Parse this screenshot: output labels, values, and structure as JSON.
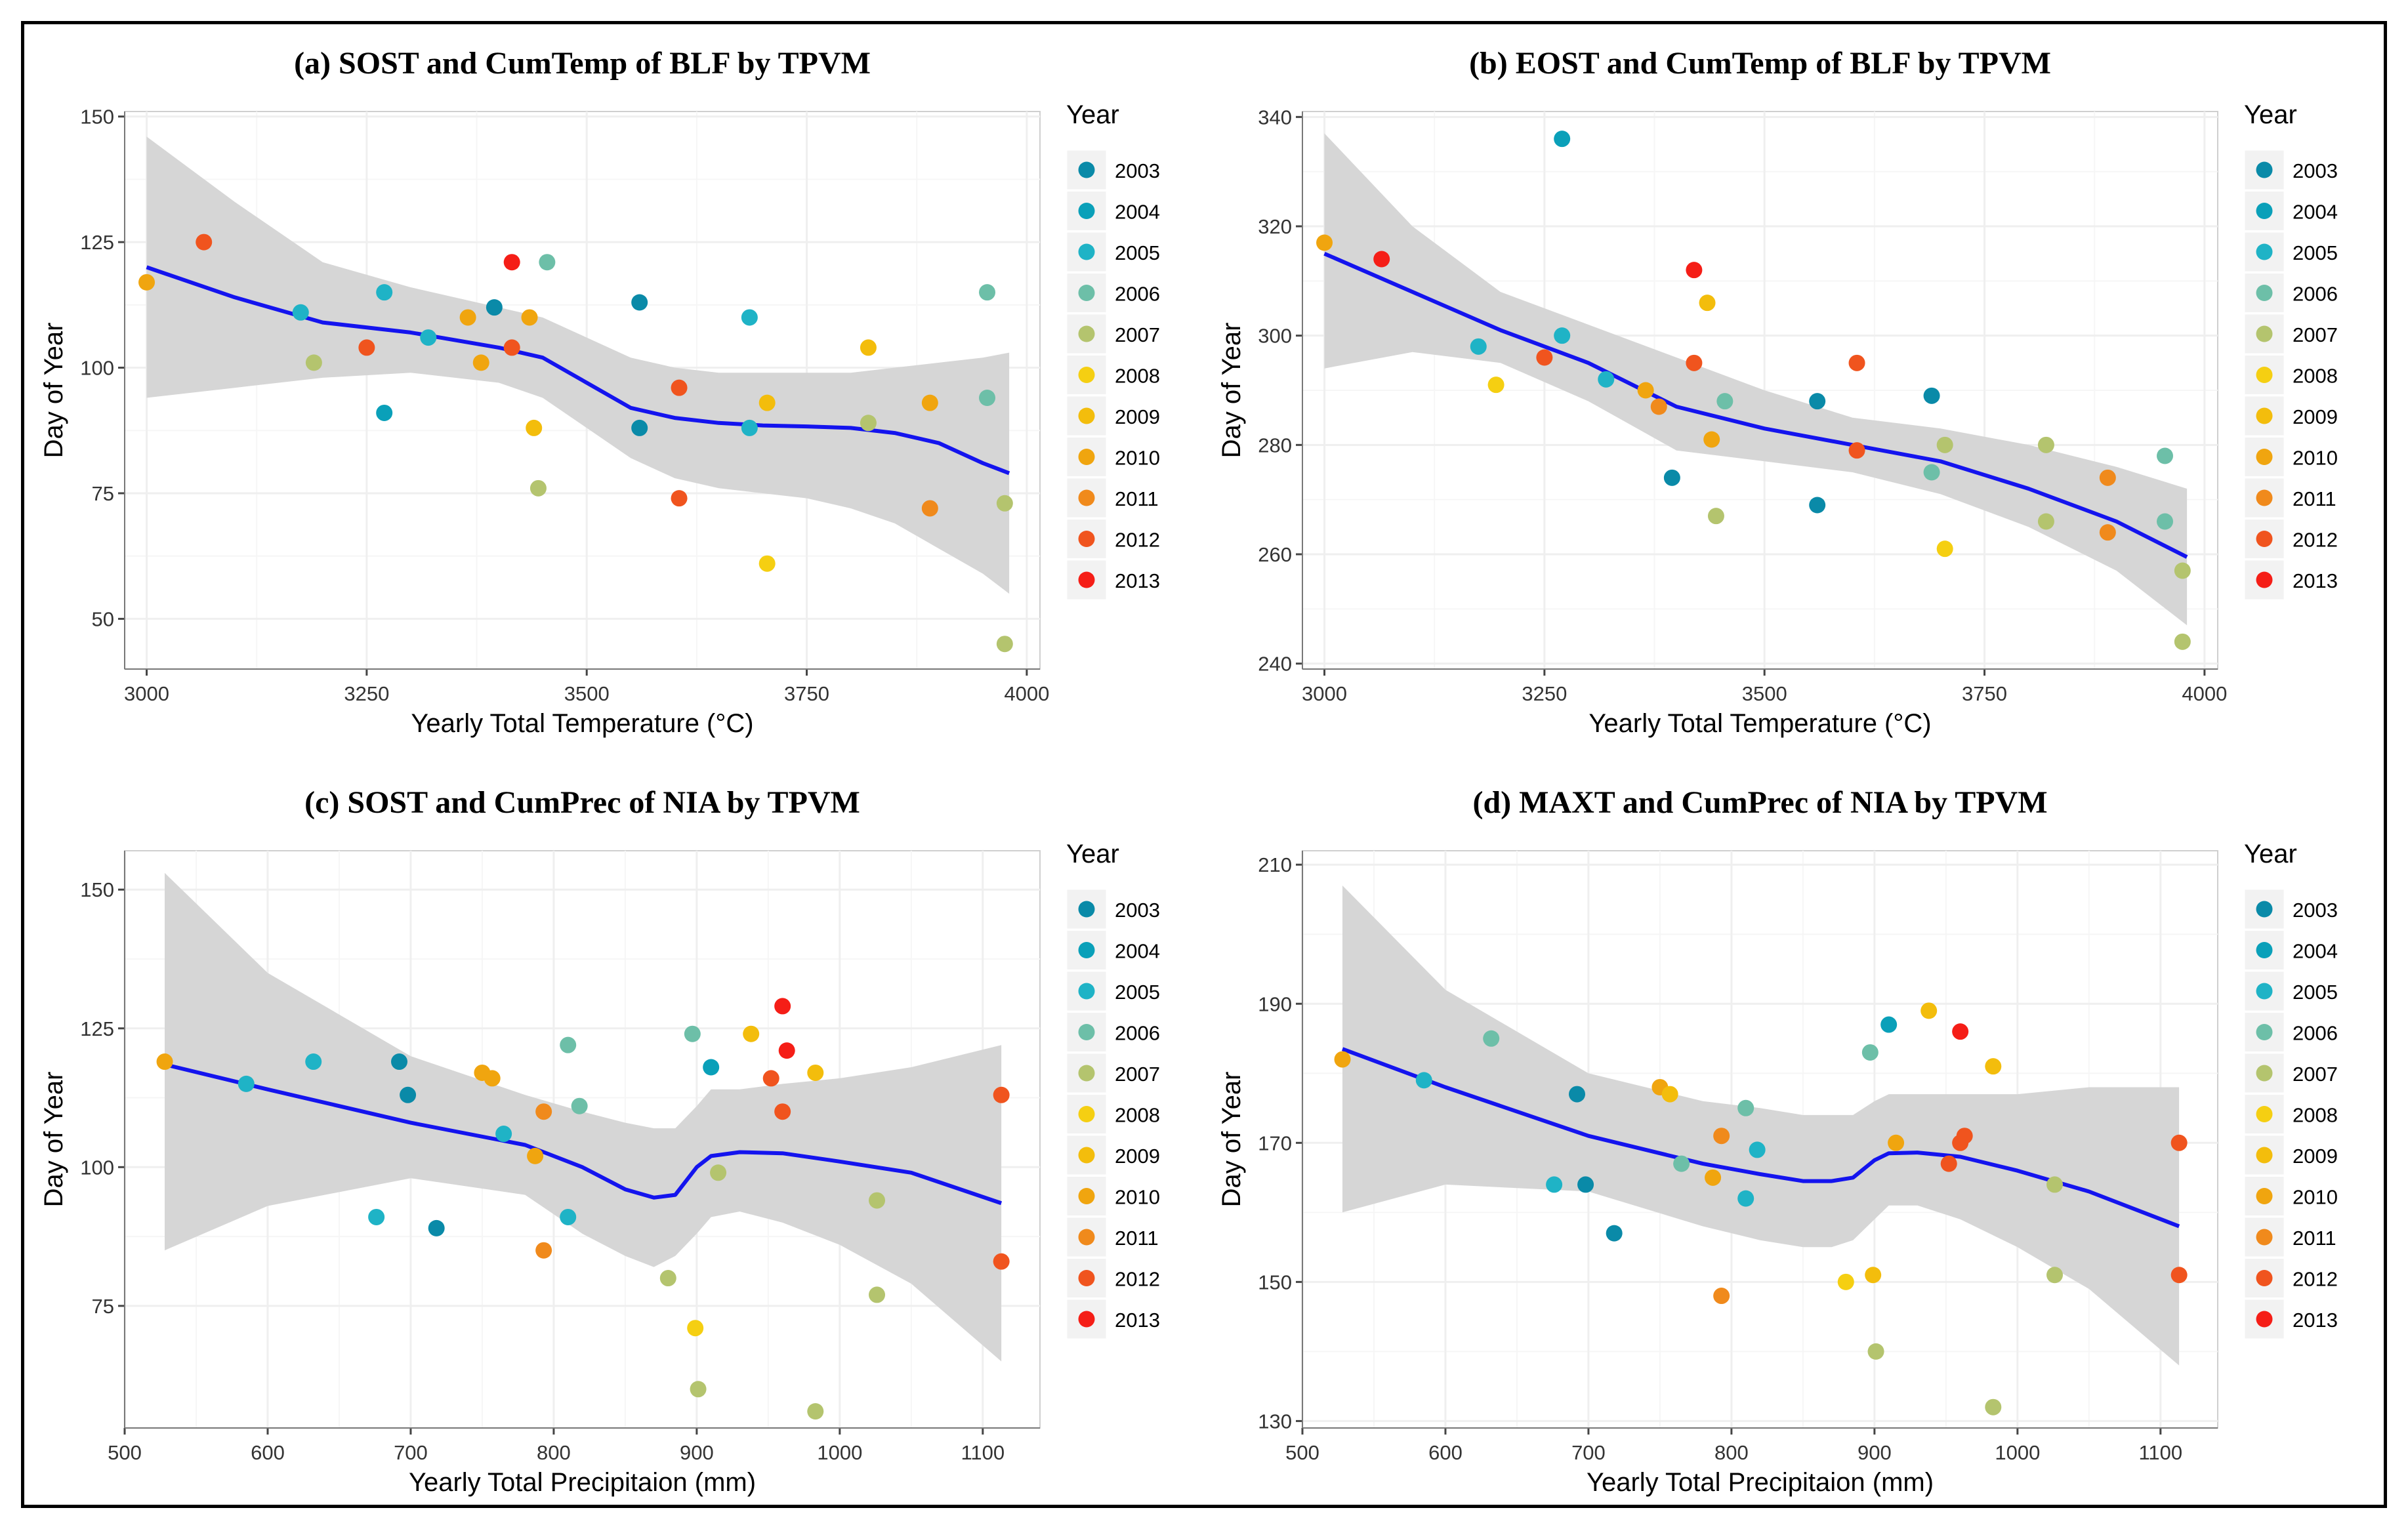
{
  "colors": {
    "years": {
      "2003": "#0a8aa8",
      "2004": "#0aa0b9",
      "2005": "#1fb3c6",
      "2006": "#6dbfa8",
      "2007": "#b4c46e",
      "2008": "#f5cf12",
      "2009": "#f3bd0c",
      "2010": "#f0a50f",
      "2011": "#f08a1c",
      "2012": "#f0541e",
      "2013": "#f51e17"
    },
    "fit_line": "#1414ee",
    "ribbon": "#d4d4d4",
    "panel_bg": "#ffffff",
    "grid": "#efefef"
  },
  "legend": {
    "title": "Year",
    "items": [
      "2003",
      "2004",
      "2005",
      "2006",
      "2007",
      "2008",
      "2009",
      "2010",
      "2011",
      "2012",
      "2013"
    ]
  },
  "chart_data": [
    {
      "type": "scatter",
      "title": "(a) SOST and CumTemp of BLF by TPVM",
      "xlabel": "Yearly Total Temperature (°C)",
      "ylabel": "Day of Year",
      "xlim": [
        2975,
        4015
      ],
      "ylim": [
        40,
        151
      ],
      "xticks": [
        3000,
        3250,
        3500,
        3750,
        4000
      ],
      "yticks": [
        50,
        75,
        100,
        125,
        150
      ],
      "points": [
        {
          "x": 3000,
          "y": 117,
          "year": "2010"
        },
        {
          "x": 3065,
          "y": 125,
          "year": "2012"
        },
        {
          "x": 3175,
          "y": 111,
          "year": "2005"
        },
        {
          "x": 3190,
          "y": 101,
          "year": "2007"
        },
        {
          "x": 3250,
          "y": 104,
          "year": "2012"
        },
        {
          "x": 3270,
          "y": 115,
          "year": "2005"
        },
        {
          "x": 3270,
          "y": 91,
          "year": "2004"
        },
        {
          "x": 3320,
          "y": 106,
          "year": "2005"
        },
        {
          "x": 3365,
          "y": 110,
          "year": "2010"
        },
        {
          "x": 3380,
          "y": 101,
          "year": "2010"
        },
        {
          "x": 3395,
          "y": 112,
          "year": "2003"
        },
        {
          "x": 3415,
          "y": 121,
          "year": "2013"
        },
        {
          "x": 3415,
          "y": 104,
          "year": "2012"
        },
        {
          "x": 3435,
          "y": 110,
          "year": "2010"
        },
        {
          "x": 3440,
          "y": 88,
          "year": "2009"
        },
        {
          "x": 3445,
          "y": 76,
          "year": "2007"
        },
        {
          "x": 3455,
          "y": 121,
          "year": "2006"
        },
        {
          "x": 3560,
          "y": 113,
          "year": "2003"
        },
        {
          "x": 3560,
          "y": 88,
          "year": "2003"
        },
        {
          "x": 3605,
          "y": 96,
          "year": "2012"
        },
        {
          "x": 3605,
          "y": 74,
          "year": "2012"
        },
        {
          "x": 3685,
          "y": 110,
          "year": "2005"
        },
        {
          "x": 3685,
          "y": 88,
          "year": "2005"
        },
        {
          "x": 3705,
          "y": 93,
          "year": "2009"
        },
        {
          "x": 3705,
          "y": 61,
          "year": "2008"
        },
        {
          "x": 3820,
          "y": 104,
          "year": "2009"
        },
        {
          "x": 3820,
          "y": 89,
          "year": "2007"
        },
        {
          "x": 3890,
          "y": 93,
          "year": "2010"
        },
        {
          "x": 3890,
          "y": 72,
          "year": "2011"
        },
        {
          "x": 3955,
          "y": 115,
          "year": "2006"
        },
        {
          "x": 3955,
          "y": 94,
          "year": "2006"
        },
        {
          "x": 3975,
          "y": 73,
          "year": "2007"
        },
        {
          "x": 3975,
          "y": 45,
          "year": "2007"
        }
      ],
      "fit": {
        "x": [
          3000,
          3100,
          3200,
          3300,
          3400,
          3450,
          3500,
          3550,
          3600,
          3650,
          3700,
          3750,
          3800,
          3850,
          3900,
          3950,
          3980
        ],
        "y": [
          120,
          114,
          109,
          107,
          104,
          102,
          97,
          92,
          90,
          89,
          88.5,
          88.3,
          88,
          87,
          85,
          81,
          79
        ],
        "lower": [
          94,
          96,
          98,
          99,
          97,
          94,
          88,
          82,
          78,
          76,
          75,
          74,
          72,
          69,
          64,
          59,
          55
        ],
        "upper": [
          146,
          133,
          121,
          116,
          112,
          110,
          106,
          102,
          100,
          99,
          99,
          99,
          99,
          100,
          101,
          102,
          103
        ]
      }
    },
    {
      "type": "scatter",
      "title": "(b) EOST and CumTemp of BLF by TPVM",
      "xlabel": "Yearly Total Temperature (°C)",
      "ylabel": "Day of Year",
      "xlim": [
        2975,
        4015
      ],
      "ylim": [
        239,
        341
      ],
      "xticks": [
        3000,
        3250,
        3500,
        3750,
        4000
      ],
      "yticks": [
        240,
        260,
        280,
        300,
        320,
        340
      ],
      "points": [
        {
          "x": 3000,
          "y": 317,
          "year": "2010"
        },
        {
          "x": 3065,
          "y": 314,
          "year": "2013"
        },
        {
          "x": 3175,
          "y": 298,
          "year": "2005"
        },
        {
          "x": 3195,
          "y": 291,
          "year": "2008"
        },
        {
          "x": 3250,
          "y": 296,
          "year": "2012"
        },
        {
          "x": 3270,
          "y": 336,
          "year": "2004"
        },
        {
          "x": 3270,
          "y": 300,
          "year": "2005"
        },
        {
          "x": 3320,
          "y": 292,
          "year": "2005"
        },
        {
          "x": 3365,
          "y": 290,
          "year": "2010"
        },
        {
          "x": 3380,
          "y": 287,
          "year": "2011"
        },
        {
          "x": 3395,
          "y": 274,
          "year": "2003"
        },
        {
          "x": 3420,
          "y": 312,
          "year": "2013"
        },
        {
          "x": 3420,
          "y": 295,
          "year": "2012"
        },
        {
          "x": 3435,
          "y": 306,
          "year": "2009"
        },
        {
          "x": 3440,
          "y": 281,
          "year": "2010"
        },
        {
          "x": 3445,
          "y": 267,
          "year": "2007"
        },
        {
          "x": 3455,
          "y": 288,
          "year": "2006"
        },
        {
          "x": 3560,
          "y": 288,
          "year": "2003"
        },
        {
          "x": 3560,
          "y": 269,
          "year": "2003"
        },
        {
          "x": 3605,
          "y": 295,
          "year": "2012"
        },
        {
          "x": 3605,
          "y": 279,
          "year": "2012"
        },
        {
          "x": 3690,
          "y": 289,
          "year": "2003"
        },
        {
          "x": 3690,
          "y": 275,
          "year": "2006"
        },
        {
          "x": 3705,
          "y": 280,
          "year": "2007"
        },
        {
          "x": 3705,
          "y": 261,
          "year": "2008"
        },
        {
          "x": 3820,
          "y": 280,
          "year": "2007"
        },
        {
          "x": 3820,
          "y": 266,
          "year": "2007"
        },
        {
          "x": 3890,
          "y": 274,
          "year": "2011"
        },
        {
          "x": 3890,
          "y": 264,
          "year": "2011"
        },
        {
          "x": 3955,
          "y": 278,
          "year": "2006"
        },
        {
          "x": 3955,
          "y": 266,
          "year": "2006"
        },
        {
          "x": 3975,
          "y": 257,
          "year": "2007"
        },
        {
          "x": 3975,
          "y": 244,
          "year": "2007"
        }
      ],
      "fit": {
        "x": [
          3000,
          3100,
          3200,
          3300,
          3400,
          3500,
          3600,
          3700,
          3800,
          3900,
          3980
        ],
        "y": [
          315,
          308,
          301,
          295,
          287,
          283,
          280,
          277,
          272,
          266,
          259.5
        ],
        "lower": [
          294,
          297,
          295,
          288,
          279,
          277,
          275,
          271,
          265,
          257,
          247
        ],
        "upper": [
          337,
          320,
          308,
          302,
          296,
          290,
          285,
          283,
          280,
          276,
          272
        ]
      }
    },
    {
      "type": "scatter",
      "title": "(c) SOST and CumPrec of NIA by TPVM",
      "xlabel": "Yearly Total Precipitaion (mm)",
      "ylabel": "Day of Year",
      "xlim": [
        500,
        1140
      ],
      "ylim": [
        53,
        157
      ],
      "xticks": [
        500,
        600,
        700,
        800,
        900,
        1000,
        1100
      ],
      "yticks": [
        75,
        100,
        125,
        150
      ],
      "points": [
        {
          "x": 528,
          "y": 119,
          "year": "2010"
        },
        {
          "x": 585,
          "y": 115,
          "year": "2005"
        },
        {
          "x": 632,
          "y": 119,
          "year": "2005"
        },
        {
          "x": 676,
          "y": 91,
          "year": "2005"
        },
        {
          "x": 692,
          "y": 119,
          "year": "2003"
        },
        {
          "x": 698,
          "y": 113,
          "year": "2003"
        },
        {
          "x": 718,
          "y": 89,
          "year": "2003"
        },
        {
          "x": 750,
          "y": 117,
          "year": "2010"
        },
        {
          "x": 757,
          "y": 116,
          "year": "2010"
        },
        {
          "x": 765,
          "y": 106,
          "year": "2005"
        },
        {
          "x": 787,
          "y": 102,
          "year": "2010"
        },
        {
          "x": 793,
          "y": 110,
          "year": "2011"
        },
        {
          "x": 793,
          "y": 85,
          "year": "2011"
        },
        {
          "x": 810,
          "y": 122,
          "year": "2006"
        },
        {
          "x": 810,
          "y": 91,
          "year": "2005"
        },
        {
          "x": 818,
          "y": 111,
          "year": "2006"
        },
        {
          "x": 880,
          "y": 80,
          "year": "2007"
        },
        {
          "x": 897,
          "y": 124,
          "year": "2006"
        },
        {
          "x": 899,
          "y": 71,
          "year": "2008"
        },
        {
          "x": 901,
          "y": 60,
          "year": "2007"
        },
        {
          "x": 910,
          "y": 118,
          "year": "2004"
        },
        {
          "x": 915,
          "y": 99,
          "year": "2007"
        },
        {
          "x": 938,
          "y": 124,
          "year": "2009"
        },
        {
          "x": 952,
          "y": 116,
          "year": "2012"
        },
        {
          "x": 960,
          "y": 129,
          "year": "2013"
        },
        {
          "x": 960,
          "y": 110,
          "year": "2012"
        },
        {
          "x": 963,
          "y": 121,
          "year": "2013"
        },
        {
          "x": 983,
          "y": 117,
          "year": "2009"
        },
        {
          "x": 983,
          "y": 56,
          "year": "2007"
        },
        {
          "x": 1026,
          "y": 94,
          "year": "2007"
        },
        {
          "x": 1026,
          "y": 77,
          "year": "2007"
        },
        {
          "x": 1113,
          "y": 113,
          "year": "2012"
        },
        {
          "x": 1113,
          "y": 83,
          "year": "2012"
        }
      ],
      "fit": {
        "x": [
          528,
          600,
          700,
          780,
          820,
          850,
          870,
          885,
          900,
          910,
          930,
          960,
          1000,
          1050,
          1113
        ],
        "y": [
          118.5,
          114,
          108,
          104,
          100,
          96,
          94.5,
          95,
          100,
          102,
          102.7,
          102.5,
          101,
          99,
          93.5
        ],
        "lower": [
          85,
          93,
          98,
          95,
          88,
          84,
          82,
          84,
          88,
          91,
          92,
          90,
          86,
          79,
          65
        ],
        "upper": [
          153,
          135,
          120,
          113,
          110,
          108,
          107,
          107,
          111,
          114,
          114,
          115,
          116,
          118,
          122
        ]
      }
    },
    {
      "type": "scatter",
      "title": "(d) MAXT and CumPrec of NIA by TPVM",
      "xlabel": "Yearly Total Precipitaion (mm)",
      "ylabel": "Day of Year",
      "xlim": [
        500,
        1140
      ],
      "ylim": [
        129,
        212
      ],
      "xticks": [
        500,
        600,
        700,
        800,
        900,
        1000,
        1100
      ],
      "yticks": [
        130,
        150,
        170,
        190,
        210
      ],
      "points": [
        {
          "x": 528,
          "y": 182,
          "year": "2010"
        },
        {
          "x": 585,
          "y": 179,
          "year": "2005"
        },
        {
          "x": 632,
          "y": 185,
          "year": "2006"
        },
        {
          "x": 676,
          "y": 164,
          "year": "2005"
        },
        {
          "x": 692,
          "y": 177,
          "year": "2003"
        },
        {
          "x": 698,
          "y": 164,
          "year": "2003"
        },
        {
          "x": 718,
          "y": 157,
          "year": "2003"
        },
        {
          "x": 750,
          "y": 178,
          "year": "2010"
        },
        {
          "x": 757,
          "y": 177,
          "year": "2009"
        },
        {
          "x": 765,
          "y": 167,
          "year": "2006"
        },
        {
          "x": 787,
          "y": 165,
          "year": "2010"
        },
        {
          "x": 793,
          "y": 171,
          "year": "2011"
        },
        {
          "x": 793,
          "y": 148,
          "year": "2011"
        },
        {
          "x": 810,
          "y": 175,
          "year": "2006"
        },
        {
          "x": 810,
          "y": 162,
          "year": "2005"
        },
        {
          "x": 818,
          "y": 169,
          "year": "2005"
        },
        {
          "x": 880,
          "y": 150,
          "year": "2008"
        },
        {
          "x": 897,
          "y": 183,
          "year": "2006"
        },
        {
          "x": 899,
          "y": 151,
          "year": "2009"
        },
        {
          "x": 901,
          "y": 140,
          "year": "2007"
        },
        {
          "x": 910,
          "y": 187,
          "year": "2004"
        },
        {
          "x": 915,
          "y": 170,
          "year": "2010"
        },
        {
          "x": 938,
          "y": 189,
          "year": "2009"
        },
        {
          "x": 952,
          "y": 167,
          "year": "2012"
        },
        {
          "x": 960,
          "y": 186,
          "year": "2013"
        },
        {
          "x": 960,
          "y": 170,
          "year": "2012"
        },
        {
          "x": 963,
          "y": 171,
          "year": "2012"
        },
        {
          "x": 983,
          "y": 181,
          "year": "2009"
        },
        {
          "x": 983,
          "y": 132,
          "year": "2007"
        },
        {
          "x": 1026,
          "y": 164,
          "year": "2007"
        },
        {
          "x": 1026,
          "y": 151,
          "year": "2007"
        },
        {
          "x": 1113,
          "y": 170,
          "year": "2012"
        },
        {
          "x": 1113,
          "y": 151,
          "year": "2012"
        }
      ],
      "fit": {
        "x": [
          528,
          600,
          700,
          780,
          820,
          850,
          870,
          885,
          900,
          910,
          930,
          960,
          1000,
          1050,
          1113
        ],
        "y": [
          183.5,
          178,
          171,
          167,
          165.5,
          164.5,
          164.5,
          165,
          167.5,
          168.5,
          168.6,
          168,
          166,
          163,
          158
        ],
        "lower": [
          160,
          164,
          163,
          158,
          156,
          155,
          155,
          156,
          159,
          161,
          161,
          159,
          155,
          149,
          138
        ],
        "upper": [
          207,
          192,
          180,
          176,
          175,
          174,
          174,
          174,
          176,
          177,
          177,
          177,
          177,
          178,
          178
        ]
      }
    }
  ]
}
